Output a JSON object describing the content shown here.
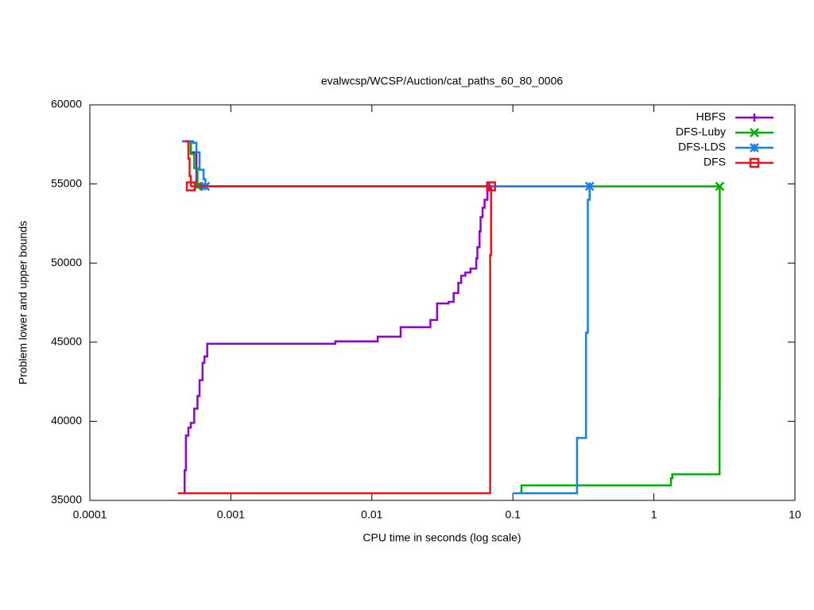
{
  "chart_data": {
    "type": "step",
    "title": "evalwcsp/WCSP/Auction/cat_paths_60_80_0006",
    "x_label": "CPU time in seconds (log scale)",
    "y_label": "Problem lower and upper bounds",
    "x_log": true,
    "xlim": [
      0.0001,
      10
    ],
    "xticks": [
      0.0001,
      0.001,
      0.01,
      0.1,
      1,
      10
    ],
    "ylim": [
      35000,
      60000
    ],
    "yticks": [
      35000,
      40000,
      45000,
      50000,
      55000,
      60000
    ],
    "legend": "top-right",
    "series": [
      {
        "name": "HBFS",
        "color": "#9400d3",
        "marker": "plus",
        "upper": {
          "x": [
            0.00045,
            0.00052,
            0.00057,
            0.00062
          ],
          "values": [
            57700,
            57000,
            55000,
            54850
          ]
        },
        "lower": {
          "x": [
            0.00046,
            0.00047,
            0.00048,
            0.0005,
            0.00052,
            0.00055,
            0.00058,
            0.0006,
            0.00063,
            0.00065,
            0.00068,
            0.0055,
            0.011,
            0.016,
            0.026,
            0.029,
            0.035,
            0.038,
            0.041,
            0.043,
            0.046,
            0.05,
            0.055,
            0.056,
            0.058,
            0.059,
            0.061,
            0.063,
            0.066,
            0.068
          ],
          "values": [
            35450,
            36900,
            39100,
            39600,
            39900,
            40800,
            41600,
            42600,
            43700,
            44100,
            44900,
            45050,
            45350,
            45950,
            46400,
            47450,
            47550,
            48100,
            48750,
            49200,
            49400,
            49650,
            50300,
            51000,
            52000,
            52900,
            53500,
            54000,
            54600,
            54850
          ]
        }
      },
      {
        "name": "DFS-Luby",
        "color": "#00b000",
        "marker": "cross",
        "upper": {
          "x": [
            0.00048,
            0.00052,
            0.00055,
            0.00058
          ],
          "values": [
            57700,
            56900,
            56000,
            54850
          ]
        },
        "lower": {
          "x": [
            0.113,
            0.115,
            1.32,
            1.35,
            2.92,
            2.93
          ],
          "values": [
            35550,
            35950,
            36400,
            36650,
            41400,
            54850
          ]
        }
      },
      {
        "name": "DFS-LDS",
        "color": "#1a7fe8",
        "marker": "star",
        "upper": {
          "x": [
            0.00045,
            0.00054,
            0.00057,
            0.0006,
            0.00064,
            0.00066
          ],
          "values": [
            57700,
            57600,
            57000,
            55900,
            55300,
            54850
          ]
        },
        "lower": {
          "x": [
            0.1,
            0.28,
            0.285,
            0.33,
            0.34,
            0.35
          ],
          "values": [
            35450,
            35450,
            38950,
            45600,
            54000,
            54850
          ]
        }
      },
      {
        "name": "DFS",
        "color": "#e8141e",
        "marker": "square",
        "upper": {
          "x": [
            0.00047,
            0.0005,
            0.00051,
            0.00052
          ],
          "values": [
            57700,
            56600,
            55500,
            54850
          ]
        },
        "lower": {
          "x": [
            0.00042,
            0.068,
            0.069,
            0.07
          ],
          "values": [
            35450,
            35450,
            50500,
            54850
          ]
        }
      }
    ]
  }
}
